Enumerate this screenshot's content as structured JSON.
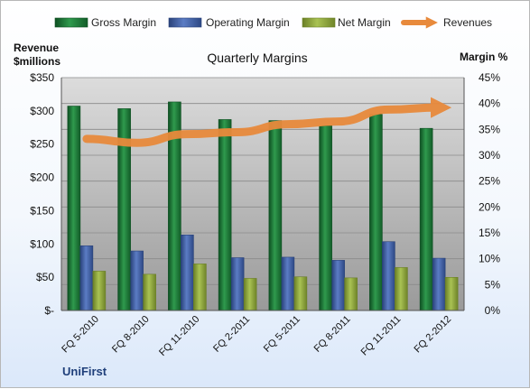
{
  "chart_data": {
    "type": "bar",
    "title": "Quarterly Margins",
    "y_left_label_line1": "Revenue",
    "y_left_label_line2": "$millions",
    "y_right_label": "Margin %",
    "company": "UniFirst",
    "categories": [
      "FQ 5-2010",
      "FQ 8-2010",
      "FQ 11-2010",
      "FQ 2-2011",
      "FQ 5-2011",
      "FQ 8-2011",
      "FQ 11-2011",
      "FQ 2-2012"
    ],
    "series": [
      {
        "name": "Gross Margin",
        "axis": "right",
        "unit": "%",
        "color": "#1e7a3a",
        "values": [
          39.5,
          39.0,
          40.3,
          36.9,
          36.7,
          35.7,
          37.9,
          35.2
        ]
      },
      {
        "name": "Operating Margin",
        "axis": "right",
        "unit": "%",
        "color": "#3e5ea8",
        "values": [
          12.5,
          11.5,
          14.6,
          10.2,
          10.3,
          9.7,
          13.3,
          10.1
        ]
      },
      {
        "name": "Net Margin",
        "axis": "right",
        "unit": "%",
        "color": "#8aa63a",
        "values": [
          7.6,
          7.0,
          9.0,
          6.2,
          6.5,
          6.3,
          8.3,
          6.4
        ]
      },
      {
        "name": "Revenues",
        "axis": "left",
        "unit": "$millions",
        "color": "#e88a3c",
        "values": [
          258,
          252,
          265,
          268,
          280,
          284,
          302,
          305
        ]
      }
    ],
    "y_left_ticks": [
      "$-",
      "$50",
      "$100",
      "$150",
      "$200",
      "$250",
      "$300",
      "$350"
    ],
    "y_right_ticks": [
      "0%",
      "5%",
      "10%",
      "15%",
      "20%",
      "25%",
      "30%",
      "35%",
      "40%",
      "45%"
    ],
    "ylim_left": [
      0,
      350
    ],
    "ylim_right": [
      0,
      45
    ],
    "legend_position": "top",
    "grid": true
  }
}
